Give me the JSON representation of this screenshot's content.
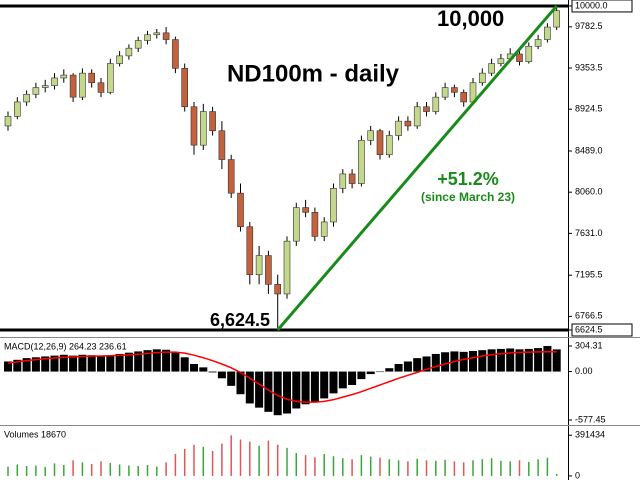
{
  "chart_data": [
    {
      "type": "candlestick",
      "title": "ND100m - daily",
      "open": [
        8750,
        8850,
        9000,
        9080,
        9150,
        9170,
        9250,
        9280,
        9050,
        9300,
        9200,
        9100,
        9400,
        9480,
        9560,
        9640,
        9700,
        9720,
        9650,
        9350,
        8950,
        8550,
        8900,
        8700,
        8400,
        8050,
        7700,
        7200,
        7400,
        7100,
        7000,
        7550,
        7900,
        7850,
        7600,
        7750,
        8100,
        8250,
        8150,
        8600,
        8700,
        8450,
        8650,
        8800,
        8750,
        8950,
        8900,
        9050,
        9150,
        9100,
        9000,
        9200,
        9300,
        9400,
        9450,
        9500,
        9420,
        9580,
        9650,
        9780
      ],
      "high": [
        8900,
        9050,
        9120,
        9200,
        9230,
        9300,
        9340,
        9300,
        9350,
        9340,
        9250,
        9450,
        9530,
        9600,
        9680,
        9740,
        9760,
        9780,
        9680,
        9400,
        9000,
        8980,
        8950,
        8800,
        8450,
        8150,
        7750,
        7500,
        7450,
        7200,
        7600,
        7950,
        7980,
        7900,
        7800,
        8150,
        8300,
        8300,
        8650,
        8750,
        8720,
        8700,
        8850,
        8850,
        9000,
        9000,
        9100,
        9200,
        9180,
        9130,
        9250,
        9350,
        9450,
        9500,
        9560,
        9530,
        9620,
        9700,
        9820,
        10000
      ],
      "low": [
        8700,
        8820,
        8960,
        9040,
        9100,
        9130,
        9200,
        9000,
        9020,
        9150,
        9050,
        9080,
        9370,
        9440,
        9520,
        9600,
        9660,
        9600,
        9300,
        8900,
        8450,
        8500,
        8650,
        8300,
        8000,
        7650,
        7100,
        7100,
        7000,
        6624.5,
        6950,
        7500,
        7800,
        7550,
        7550,
        7700,
        8050,
        8100,
        8120,
        8550,
        8400,
        8420,
        8600,
        8700,
        8720,
        8850,
        8870,
        9020,
        9050,
        8950,
        8980,
        9170,
        9270,
        9370,
        9420,
        9380,
        9400,
        9550,
        9620,
        9750
      ],
      "close": [
        8850,
        9000,
        9080,
        9150,
        9170,
        9250,
        9280,
        9050,
        9300,
        9200,
        9100,
        9400,
        9480,
        9560,
        9640,
        9700,
        9720,
        9650,
        9350,
        8950,
        8550,
        8900,
        8700,
        8400,
        8050,
        7700,
        7200,
        7400,
        7100,
        7000,
        7550,
        7900,
        7850,
        7600,
        7750,
        8100,
        8250,
        8150,
        8600,
        8700,
        8450,
        8650,
        8800,
        8750,
        8950,
        8900,
        9050,
        9150,
        9100,
        9000,
        9200,
        9300,
        9400,
        9450,
        9500,
        9420,
        9580,
        9650,
        9780,
        9950
      ],
      "up_color": "#c4d88c",
      "down_color": "#c2613c",
      "wick_color": "#000000",
      "ylim": [
        6562,
        10062
      ],
      "yticks": [
        {
          "value": 10000,
          "label": "10000.0"
        },
        9782.5,
        9353.5,
        8924.5,
        {
          "value": 8489,
          "label": "8489.0"
        },
        {
          "value": 8060,
          "label": "8060.0"
        },
        {
          "value": 7631,
          "label": "7631.0"
        },
        7195.5,
        6766.5,
        6624.5
      ],
      "trendline_color": "#1a8a1a",
      "annotations": [
        {
          "text": "10,000",
          "color": "#000000"
        },
        {
          "text": "6,624.5",
          "color": "#000000"
        },
        {
          "text": "+51.2%",
          "color": "#1a8a1a"
        },
        {
          "text": "(since March 23)",
          "color": "#1a8a1a"
        }
      ]
    },
    {
      "type": "macd",
      "label": "MACD(12,26,9) 264.23 236.61",
      "histogram": [
        120,
        140,
        160,
        170,
        180,
        190,
        200,
        190,
        200,
        195,
        185,
        195,
        210,
        225,
        240,
        255,
        265,
        260,
        230,
        170,
        90,
        50,
        -10,
        -80,
        -170,
        -270,
        -380,
        -430,
        -480,
        -520,
        -500,
        -440,
        -390,
        -360,
        -320,
        -260,
        -200,
        -160,
        -90,
        -30,
        0,
        40,
        90,
        120,
        160,
        180,
        210,
        230,
        240,
        235,
        245,
        255,
        265,
        270,
        275,
        265,
        270,
        280,
        304.31,
        264.23
      ],
      "signal": [
        100,
        115,
        130,
        142,
        152,
        161,
        170,
        175,
        180,
        184,
        186,
        189,
        193,
        199,
        207,
        216,
        225,
        232,
        232,
        220,
        195,
        165,
        130,
        90,
        45,
        -10,
        -80,
        -150,
        -220,
        -285,
        -330,
        -355,
        -365,
        -365,
        -355,
        -335,
        -305,
        -275,
        -240,
        -200,
        -160,
        -120,
        -80,
        -45,
        -10,
        25,
        60,
        90,
        120,
        145,
        165,
        185,
        200,
        212,
        222,
        228,
        232,
        235,
        236,
        236.61
      ],
      "histogram_color": "#000000",
      "signal_color": "#ff0000",
      "ylim": [
        -625,
        400
      ],
      "yticks": [
        304.31,
        {
          "value": 0,
          "label": "0.00"
        },
        -577.45
      ]
    },
    {
      "type": "volume",
      "label": "Volumes 18670",
      "values": [
        90000,
        110000,
        95000,
        100000,
        85000,
        120000,
        105000,
        150000,
        130000,
        115000,
        140000,
        125000,
        110000,
        100000,
        95000,
        105000,
        90000,
        130000,
        210000,
        260000,
        300000,
        280000,
        240000,
        310000,
        391434,
        350000,
        330000,
        290000,
        340000,
        300000,
        270000,
        220000,
        200000,
        180000,
        210000,
        190000,
        170000,
        160000,
        200000,
        185000,
        175000,
        160000,
        150000,
        140000,
        165000,
        150000,
        145000,
        155000,
        140000,
        130000,
        150000,
        160000,
        170000,
        145000,
        140000,
        150000,
        135000,
        160000,
        175000,
        18670
      ],
      "up_color": "#3aa53a",
      "down_color": "#e05555",
      "ylim": [
        -20000,
        480000
      ],
      "yticks": [
        391434,
        0
      ]
    }
  ]
}
